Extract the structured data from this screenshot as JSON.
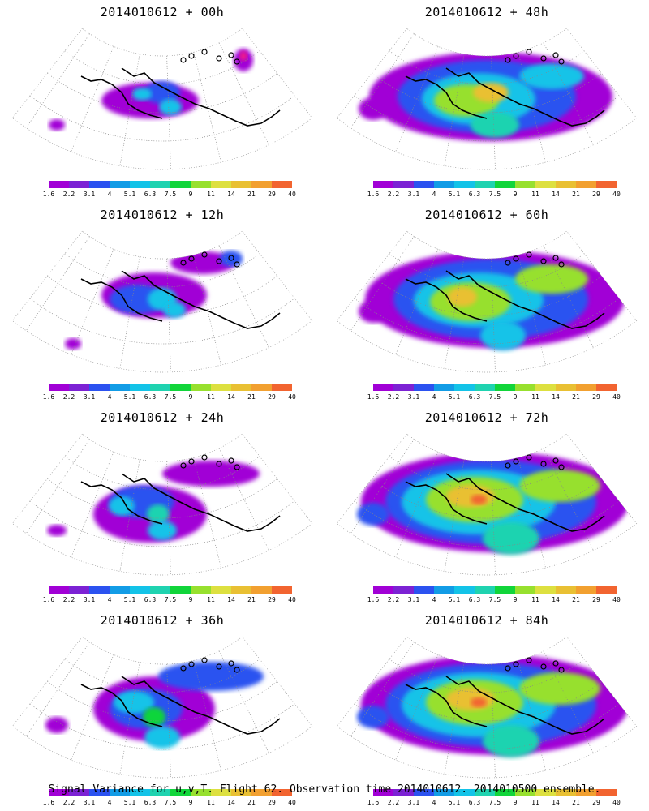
{
  "caption": "Signal Variance for u,v,T. Flight 62. Observation time 2014010612. 2014010500 ensemble.",
  "colorbar": {
    "labels": [
      "1.6",
      "2.2",
      "3.1",
      "4",
      "5.1",
      "6.3",
      "7.5",
      "9",
      "11",
      "14",
      "21",
      "29",
      "40"
    ],
    "colors": [
      "#a100d6",
      "#7c22d4",
      "#2b52f0",
      "#129ce6",
      "#13c3e8",
      "#1fd3b0",
      "#11d53a",
      "#97e02e",
      "#dde040",
      "#e9c033",
      "#f2a030",
      "#f26430",
      "#f0407a",
      "#f21d86"
    ]
  },
  "panels": [
    {
      "title": "2014010612 + 00h",
      "intensity": 0
    },
    {
      "title": "2014010612 + 48h",
      "intensity": 4
    },
    {
      "title": "2014010612 + 12h",
      "intensity": 1
    },
    {
      "title": "2014010612 + 60h",
      "intensity": 5
    },
    {
      "title": "2014010612 + 24h",
      "intensity": 2
    },
    {
      "title": "2014010612 + 72h",
      "intensity": 6
    },
    {
      "title": "2014010612 + 36h",
      "intensity": 3
    },
    {
      "title": "2014010612 + 84h",
      "intensity": 6
    }
  ]
}
